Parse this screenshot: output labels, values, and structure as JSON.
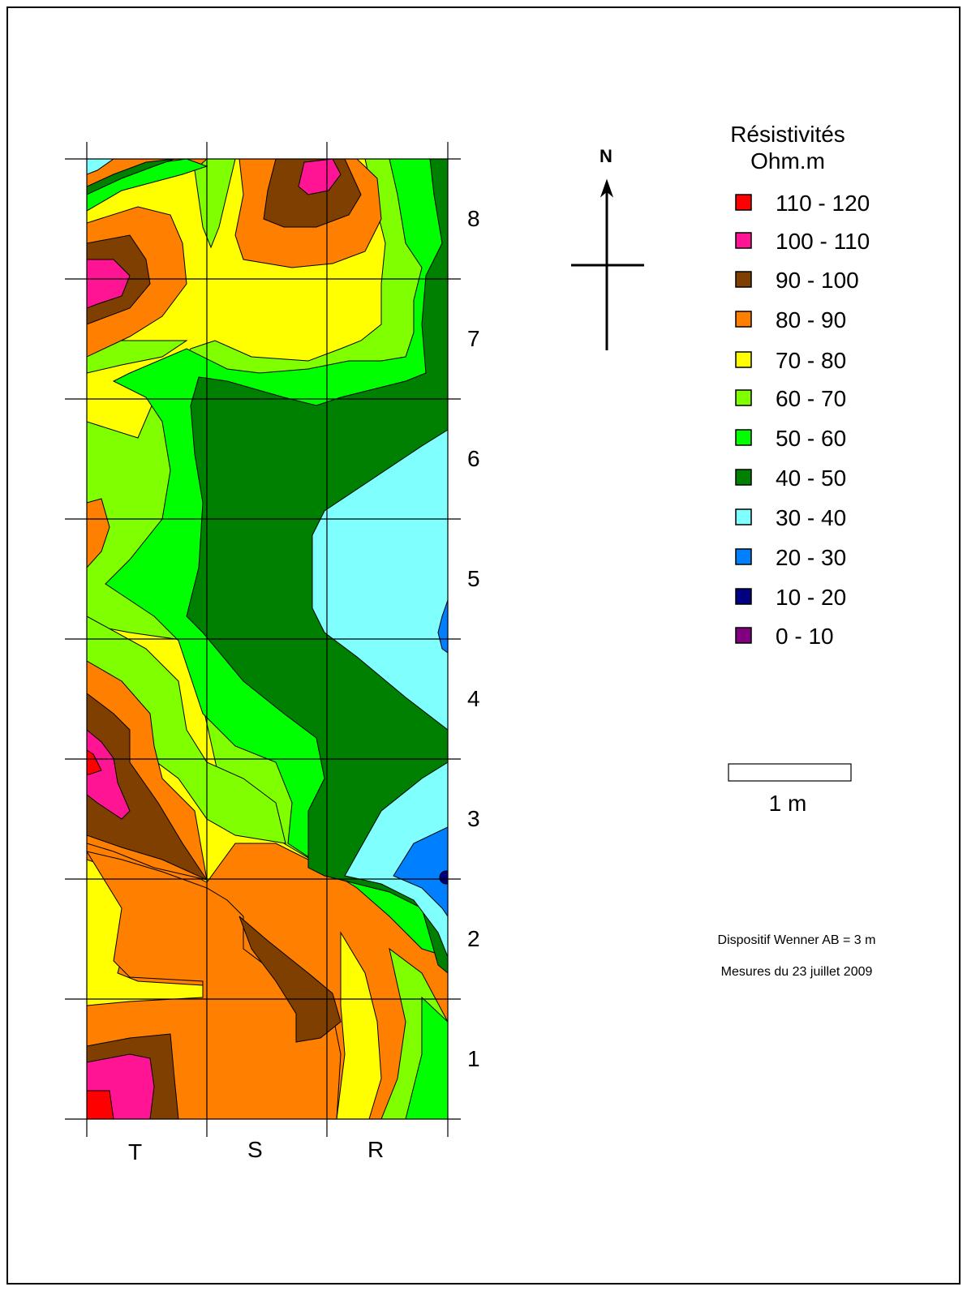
{
  "legend": {
    "title_line1": "Résistivités",
    "title_line2": "Ohm.m",
    "classes": [
      {
        "label": "110 - 120",
        "color": "#ff0000"
      },
      {
        "label": "100 - 110",
        "color": "#ff1493"
      },
      {
        "label": "90 - 100",
        "color": "#7f3f00"
      },
      {
        "label": "80 - 90",
        "color": "#ff8000"
      },
      {
        "label": "70 - 80",
        "color": "#ffff00"
      },
      {
        "label": "60 - 70",
        "color": "#80ff00"
      },
      {
        "label": "50 - 60",
        "color": "#00ff00"
      },
      {
        "label": "40 - 50",
        "color": "#008000"
      },
      {
        "label": "30 - 40",
        "color": "#80ffff"
      },
      {
        "label": "20 - 30",
        "color": "#0080ff"
      },
      {
        "label": "10 - 20",
        "color": "#000080"
      },
      {
        "label": "0 - 10",
        "color": "#800080"
      }
    ]
  },
  "north_label": "N",
  "scale_bar_label": "1 m",
  "notes": {
    "method": "Dispositif Wenner AB = 3 m",
    "date": "Mesures du 23 juillet 2009"
  },
  "grid": {
    "row_labels": [
      "1",
      "2",
      "3",
      "4",
      "5",
      "6",
      "7",
      "8"
    ],
    "column_labels": [
      "T",
      "S",
      "R"
    ]
  }
}
